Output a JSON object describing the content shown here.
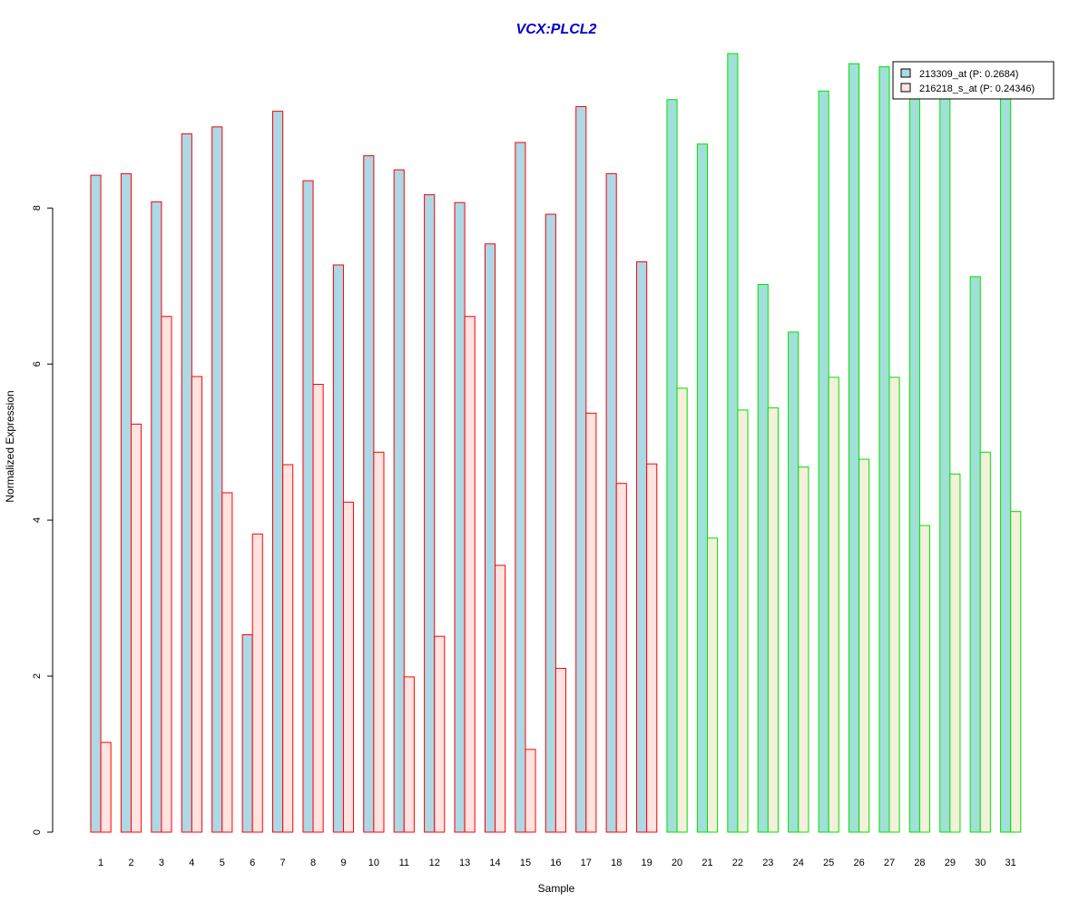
{
  "chart_data": {
    "type": "bar",
    "title": "VCX:PLCL2",
    "xlabel": "Sample",
    "ylabel": "Normalized Expression",
    "ylim": [
      0,
      10
    ],
    "yticks": [
      0,
      2,
      4,
      6,
      8
    ],
    "categories": [
      "1",
      "2",
      "3",
      "4",
      "5",
      "6",
      "7",
      "8",
      "9",
      "10",
      "11",
      "12",
      "13",
      "14",
      "15",
      "16",
      "17",
      "18",
      "19",
      "20",
      "21",
      "22",
      "23",
      "24",
      "25",
      "26",
      "27",
      "28",
      "29",
      "30",
      "31"
    ],
    "series": [
      {
        "name": "213309_at (P: 0.2684)",
        "values": [
          8.42,
          8.44,
          8.08,
          8.95,
          9.04,
          2.53,
          9.24,
          8.35,
          7.27,
          8.67,
          8.49,
          8.17,
          8.07,
          7.54,
          8.84,
          7.92,
          9.3,
          8.44,
          7.31,
          9.39,
          8.82,
          9.98,
          7.02,
          6.41,
          9.5,
          9.85,
          9.81,
          9.41,
          9.49,
          7.12,
          9.4
        ]
      },
      {
        "name": "216218_s_at (P: 0.24346)",
        "values": [
          1.15,
          5.23,
          6.61,
          5.84,
          4.35,
          3.82,
          4.71,
          5.74,
          4.23,
          4.87,
          1.99,
          2.51,
          6.61,
          3.42,
          1.06,
          2.1,
          5.37,
          4.47,
          4.72,
          5.69,
          3.77,
          5.41,
          5.44,
          4.68,
          5.83,
          4.78,
          5.83,
          3.93,
          4.59,
          4.87,
          4.11
        ]
      }
    ],
    "groups": [
      {
        "samples": [
          1,
          19
        ],
        "outline": "#ff0000",
        "fills": [
          "#add8e6",
          "#ffe4e1"
        ]
      },
      {
        "samples": [
          20,
          31
        ],
        "outline": "#00e000",
        "fills": [
          "#a0e0d8",
          "#f5f0dc"
        ]
      }
    ],
    "legend_position": "top-right",
    "colors": {
      "title": "#0000cc",
      "legend_fills": [
        "#add8e6",
        "#ffe4e1"
      ]
    },
    "grid": false
  }
}
